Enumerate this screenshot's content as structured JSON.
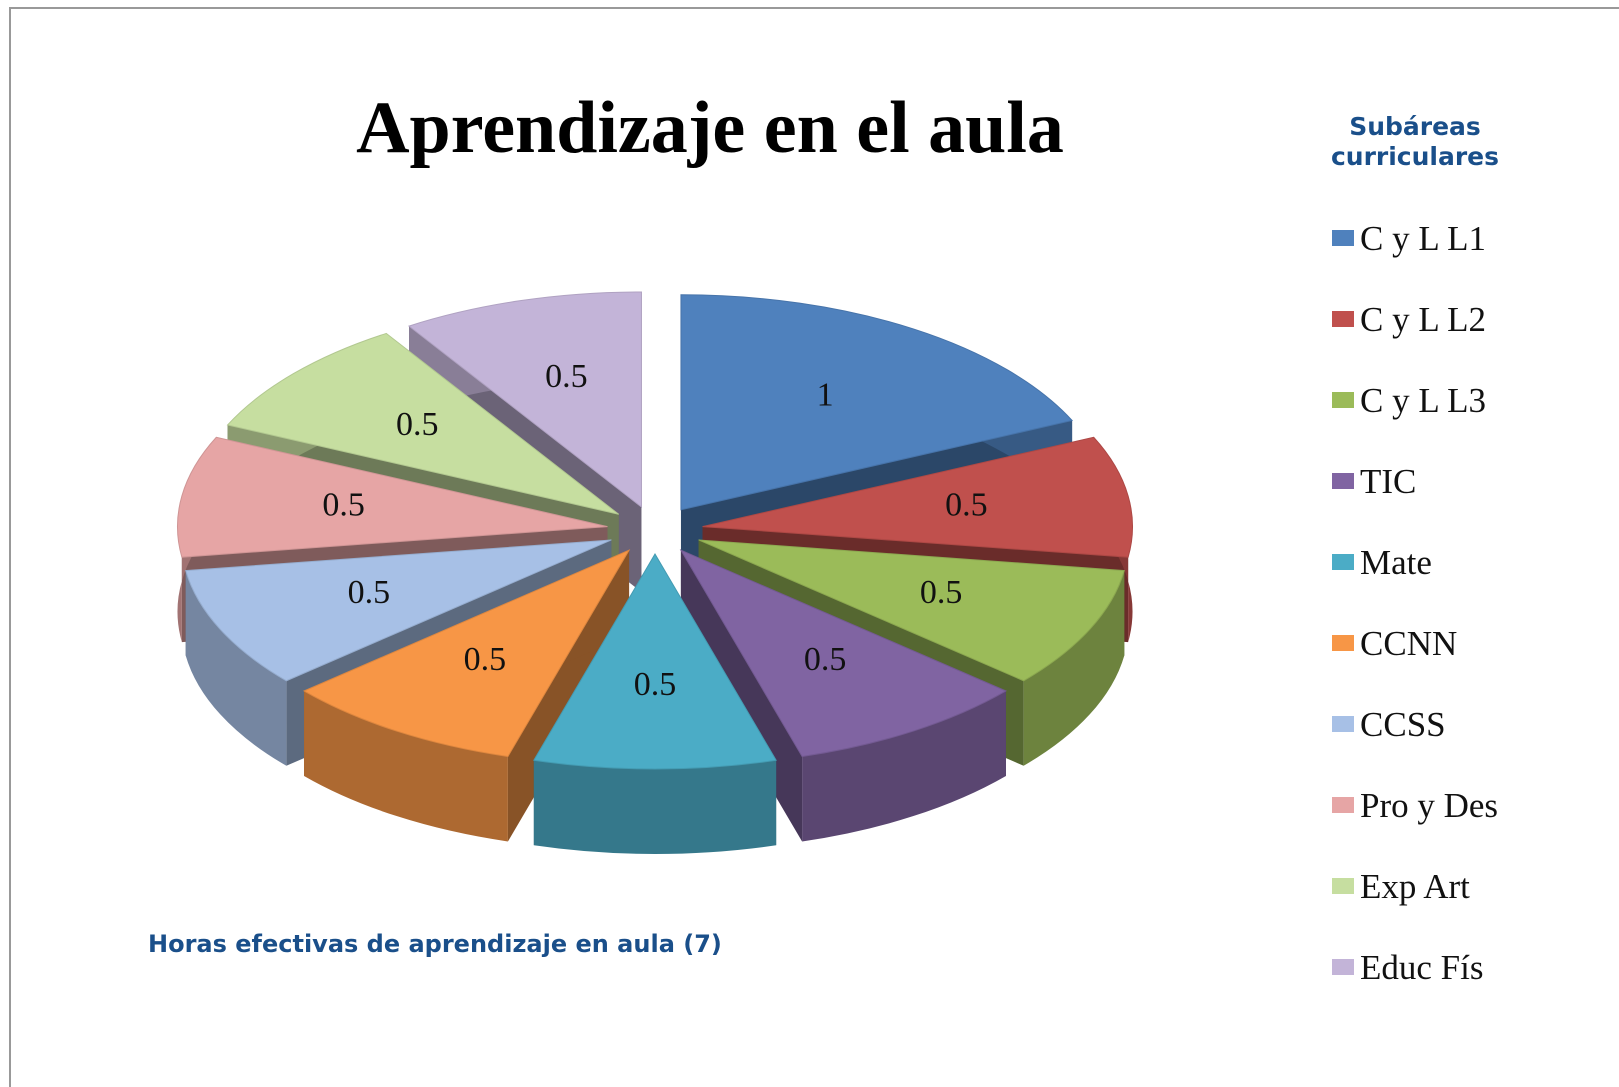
{
  "chart_data": {
    "type": "pie3d",
    "title": "Aprendizaje en el aula",
    "legend_title": "Subáreas curriculares",
    "annotation": "Horas efectivas de aprendizaje en aula (7)",
    "categories": [
      "C y L L1",
      "C y L L2",
      "C y L L3",
      "TIC",
      "Mate",
      "CCNN",
      "CCSS",
      "Pro y Des",
      "Exp Art",
      "Educ Fís"
    ],
    "values": [
      1,
      0.5,
      0.5,
      0.5,
      0.5,
      0.5,
      0.5,
      0.5,
      0.5,
      0.5
    ],
    "colors": [
      "#4f81bd",
      "#c0504d",
      "#9bbb59",
      "#8064a2",
      "#4bacc6",
      "#f79646",
      "#a7c0e6",
      "#e6a5a5",
      "#c6dea0",
      "#c3b4d8"
    ],
    "legend": "right"
  }
}
